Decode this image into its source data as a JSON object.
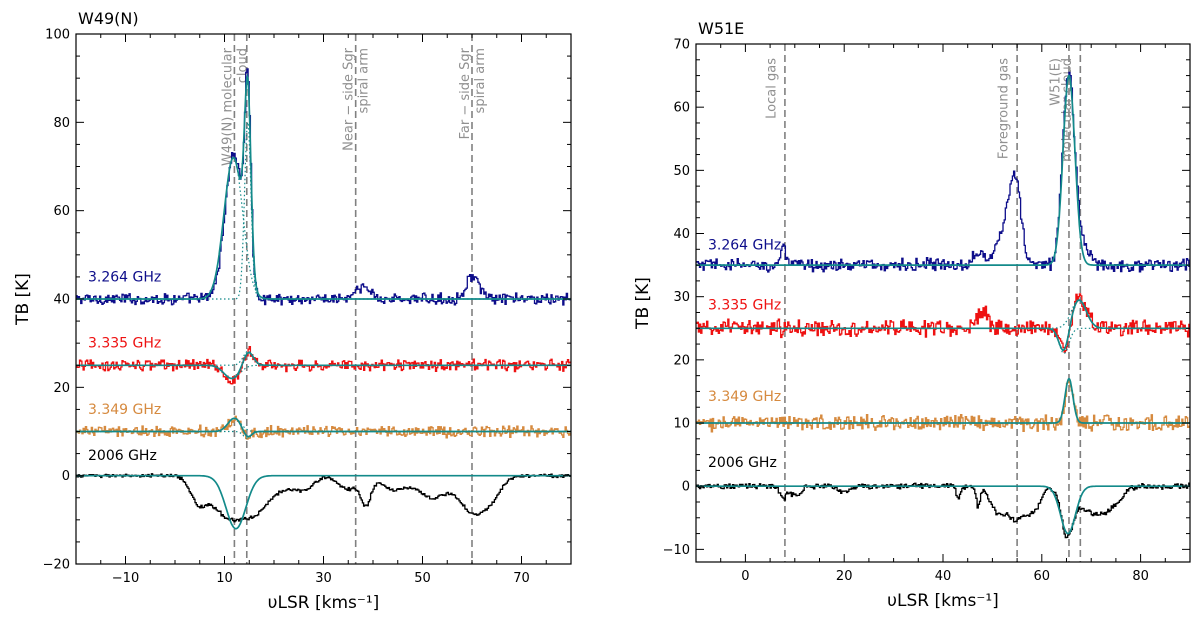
{
  "chart_data": [
    {
      "type": "line",
      "title": "W49(N)",
      "xlabel": "υLSR [kms⁻¹]",
      "ylabel": "TB [K]",
      "xlim": [
        -20,
        80
      ],
      "ylim": [
        -20,
        100
      ],
      "xticks": [
        -10,
        10,
        30,
        50,
        70
      ],
      "yticks": [
        -20,
        0,
        20,
        40,
        60,
        80,
        100
      ],
      "annotations": [
        {
          "x": 12.0,
          "lines": [
            "W49(N) molecular",
            "cloud"
          ]
        },
        {
          "x": 36.5,
          "lines": [
            "Near − side Sgr",
            "spiral arm"
          ]
        },
        {
          "x": 60.0,
          "lines": [
            "Far − side Sgr",
            "spiral arm"
          ]
        }
      ],
      "vlines": [
        12.0,
        14.5,
        36.5,
        60.0
      ],
      "series": [
        {
          "name": "3.264 GHz",
          "baseline": 40,
          "color": "#0d0d8a",
          "label_y": 44,
          "noise": 1.0,
          "features": [
            {
              "a": 33,
              "c": 11.8,
              "w": 1.8
            },
            {
              "a": 43,
              "c": 14.6,
              "w": 0.6
            },
            {
              "a": 5.5,
              "c": 60.0,
              "w": 1.2
            },
            {
              "a": 2.5,
              "c": 38.0,
              "w": 1.5
            }
          ],
          "fit": [
            {
              "a": 32,
              "c": 11.8,
              "w": 1.9
            },
            {
              "a": 40,
              "c": 14.7,
              "w": 0.65
            }
          ]
        },
        {
          "name": "3.335 GHz",
          "baseline": 25,
          "color": "#ee1111",
          "label_y": 29,
          "noise": 1.0,
          "features": [
            {
              "a": -3.5,
              "c": 11.5,
              "w": 1.5
            },
            {
              "a": 3.5,
              "c": 14.8,
              "w": 1.0
            }
          ],
          "fit": [
            {
              "a": -3.0,
              "c": 11.5,
              "w": 1.6
            },
            {
              "a": 3.2,
              "c": 14.8,
              "w": 1.0
            }
          ]
        },
        {
          "name": "3.349 GHz",
          "baseline": 10,
          "color": "#d68a3f",
          "label_y": 14,
          "noise": 1.0,
          "features": [
            {
              "a": 3.0,
              "c": 12.0,
              "w": 1.2
            },
            {
              "a": -1.5,
              "c": 14.6,
              "w": 0.8
            }
          ],
          "fit": [
            {
              "a": 3.0,
              "c": 12.0,
              "w": 1.3
            },
            {
              "a": -1.5,
              "c": 14.6,
              "w": 0.8
            }
          ]
        },
        {
          "name": "2006 GHz",
          "baseline": 0,
          "color": "#000000",
          "label_y": 3.5,
          "noise": 0.3,
          "features": [
            {
              "a": -5,
              "c": 4.5,
              "w": 1.6
            },
            {
              "a": -9,
              "c": 10.5,
              "w": 3.3
            },
            {
              "a": -7,
              "c": 16.5,
              "w": 2.8
            },
            {
              "a": -2,
              "c": 22,
              "w": 2
            },
            {
              "a": -3,
              "c": 26,
              "w": 2
            },
            {
              "a": -6,
              "c": 38.5,
              "w": 1.0
            },
            {
              "a": -3,
              "c": 35,
              "w": 2
            },
            {
              "a": -3,
              "c": 44,
              "w": 2.5
            },
            {
              "a": -5,
              "c": 52,
              "w": 3
            },
            {
              "a": -8,
              "c": 60,
              "w": 2.5
            },
            {
              "a": -4,
              "c": 64,
              "w": 2
            }
          ],
          "fit": [
            {
              "a": -12,
              "c": 12.3,
              "w": 2.0
            }
          ]
        }
      ]
    },
    {
      "type": "line",
      "title": "W51E",
      "xlabel": "υLSR [kms⁻¹]",
      "ylabel": "TB [K]",
      "xlim": [
        -10,
        90
      ],
      "ylim": [
        -12,
        70
      ],
      "xticks": [
        0,
        20,
        40,
        60,
        80
      ],
      "yticks": [
        -10,
        0,
        10,
        20,
        30,
        40,
        50,
        60,
        70
      ],
      "annotations": [
        {
          "x": 8.0,
          "lines": [
            "Local gas"
          ]
        },
        {
          "x": 55.0,
          "lines": [
            "Foreground gas"
          ]
        },
        {
          "x": 65.5,
          "lines": [
            "W51(E)"
          ]
        },
        {
          "x": 67.8,
          "lines": [
            "molecular cloud"
          ]
        }
      ],
      "vlines": [
        8.0,
        55.0,
        65.5,
        67.8
      ],
      "series": [
        {
          "name": "3.264 GHz",
          "baseline": 35,
          "color": "#0d0d8a",
          "label_y": 37.5,
          "noise": 0.8,
          "features": [
            {
              "a": 13,
              "c": 54.5,
              "w": 1.2
            },
            {
              "a": 5,
              "c": 52,
              "w": 1.5
            },
            {
              "a": 2.5,
              "c": 47,
              "w": 1
            },
            {
              "a": 3,
              "c": 7.5,
              "w": 0.5
            },
            {
              "a": 30,
              "c": 65.3,
              "w": 1.2
            },
            {
              "a": 3,
              "c": 68,
              "w": 1.5
            }
          ],
          "fit": [
            {
              "a": 30,
              "c": 65.5,
              "w": 1.2
            }
          ]
        },
        {
          "name": "3.335 GHz",
          "baseline": 25,
          "color": "#ee1111",
          "label_y": 28,
          "noise": 1.0,
          "features": [
            {
              "a": 3,
              "c": 48,
              "w": 1
            },
            {
              "a": -4,
              "c": 64.5,
              "w": 0.9
            },
            {
              "a": 5,
              "c": 67.5,
              "w": 1.5
            }
          ],
          "fit": [
            {
              "a": -4,
              "c": 64.5,
              "w": 1.0
            },
            {
              "a": 4.5,
              "c": 67.5,
              "w": 1.5
            }
          ]
        },
        {
          "name": "3.349 GHz",
          "baseline": 10,
          "color": "#d68a3f",
          "label_y": 13.5,
          "noise": 1.0,
          "features": [
            {
              "a": 7,
              "c": 65.5,
              "w": 0.8
            }
          ],
          "fit": [
            {
              "a": 7,
              "c": 65.5,
              "w": 0.8
            }
          ]
        },
        {
          "name": "2006 GHz",
          "baseline": 0,
          "color": "#000000",
          "label_y": 3,
          "noise": 0.35,
          "features": [
            {
              "a": -2,
              "c": 7.5,
              "w": 0.6
            },
            {
              "a": -1.5,
              "c": 10,
              "w": 1
            },
            {
              "a": -1,
              "c": 20,
              "w": 1
            },
            {
              "a": -2,
              "c": 43,
              "w": 0.4
            },
            {
              "a": -3,
              "c": 47,
              "w": 0.4
            },
            {
              "a": -4,
              "c": 51,
              "w": 1.5
            },
            {
              "a": -5,
              "c": 54.5,
              "w": 1.5
            },
            {
              "a": -4,
              "c": 58,
              "w": 1.5
            },
            {
              "a": -7,
              "c": 65,
              "w": 1.2
            },
            {
              "a": -4,
              "c": 70,
              "w": 3
            },
            {
              "a": -2,
              "c": 74,
              "w": 2
            }
          ],
          "fit": [
            {
              "a": -7.5,
              "c": 65.3,
              "w": 1.5
            }
          ]
        }
      ]
    }
  ]
}
